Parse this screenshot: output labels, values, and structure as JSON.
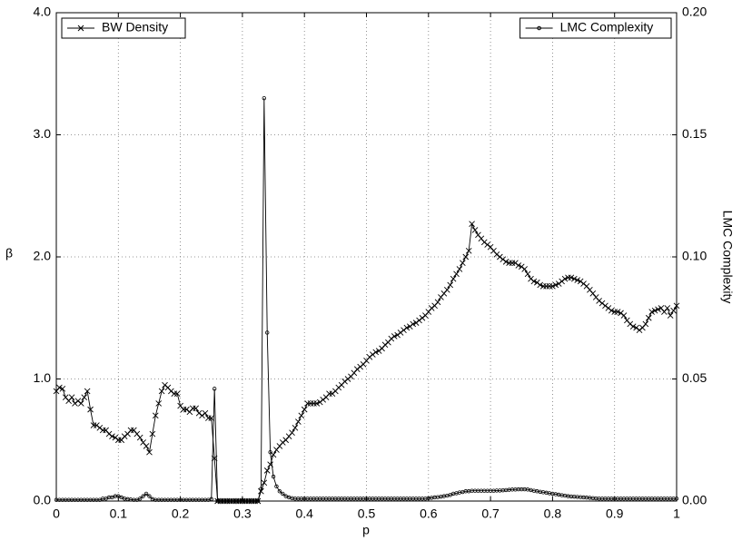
{
  "chart_data": {
    "type": "line",
    "xlabel": "p",
    "ylabel": "β",
    "y2label": "LMC Complexity",
    "xlim": [
      0,
      1
    ],
    "ylim": [
      0,
      4
    ],
    "y2lim": [
      0,
      0.2
    ],
    "xticks": [
      0,
      0.1,
      0.2,
      0.3,
      0.4,
      0.5,
      0.6,
      0.7,
      0.8,
      0.9,
      1
    ],
    "yticks": [
      {
        "value": 0,
        "label": "0.0"
      },
      {
        "value": 1,
        "label": "1.0"
      },
      {
        "value": 2,
        "label": "2.0"
      },
      {
        "value": 3,
        "label": "3.0"
      },
      {
        "value": 4,
        "label": "4.0"
      }
    ],
    "y2ticks": [
      {
        "value": 0,
        "label": "0.00"
      },
      {
        "value": 0.05,
        "label": "0.05"
      },
      {
        "value": 0.1,
        "label": "0.10"
      },
      {
        "value": 0.15,
        "label": "0.15"
      },
      {
        "value": 0.2,
        "label": "0.20"
      }
    ],
    "grid": true,
    "x": [
      0,
      0.005,
      0.01,
      0.015,
      0.02,
      0.025,
      0.03,
      0.035,
      0.04,
      0.045,
      0.05,
      0.055,
      0.06,
      0.065,
      0.07,
      0.075,
      0.08,
      0.085,
      0.09,
      0.095,
      0.1,
      0.105,
      0.11,
      0.115,
      0.12,
      0.125,
      0.13,
      0.135,
      0.14,
      0.145,
      0.15,
      0.155,
      0.16,
      0.165,
      0.17,
      0.175,
      0.18,
      0.185,
      0.19,
      0.195,
      0.2,
      0.205,
      0.21,
      0.215,
      0.22,
      0.225,
      0.23,
      0.235,
      0.24,
      0.245,
      0.25,
      0.255,
      0.26,
      0.265,
      0.27,
      0.275,
      0.28,
      0.285,
      0.29,
      0.295,
      0.3,
      0.305,
      0.31,
      0.315,
      0.32,
      0.325,
      0.33,
      0.335,
      0.34,
      0.345,
      0.35,
      0.355,
      0.36,
      0.365,
      0.37,
      0.375,
      0.38,
      0.385,
      0.39,
      0.395,
      0.4,
      0.405,
      0.41,
      0.415,
      0.42,
      0.425,
      0.43,
      0.435,
      0.44,
      0.445,
      0.45,
      0.455,
      0.46,
      0.465,
      0.47,
      0.475,
      0.48,
      0.485,
      0.49,
      0.495,
      0.5,
      0.505,
      0.51,
      0.515,
      0.52,
      0.525,
      0.53,
      0.535,
      0.54,
      0.545,
      0.55,
      0.555,
      0.56,
      0.565,
      0.57,
      0.575,
      0.58,
      0.585,
      0.59,
      0.595,
      0.6,
      0.605,
      0.61,
      0.615,
      0.62,
      0.625,
      0.63,
      0.635,
      0.64,
      0.645,
      0.65,
      0.655,
      0.66,
      0.665,
      0.67,
      0.675,
      0.68,
      0.685,
      0.69,
      0.695,
      0.7,
      0.705,
      0.71,
      0.715,
      0.72,
      0.725,
      0.73,
      0.735,
      0.74,
      0.745,
      0.75,
      0.755,
      0.76,
      0.765,
      0.77,
      0.775,
      0.78,
      0.785,
      0.79,
      0.795,
      0.8,
      0.805,
      0.81,
      0.815,
      0.82,
      0.825,
      0.83,
      0.835,
      0.84,
      0.845,
      0.85,
      0.855,
      0.86,
      0.865,
      0.87,
      0.875,
      0.88,
      0.885,
      0.89,
      0.895,
      0.9,
      0.905,
      0.91,
      0.915,
      0.92,
      0.925,
      0.93,
      0.935,
      0.94,
      0.945,
      0.95,
      0.955,
      0.96,
      0.965,
      0.97,
      0.975,
      0.98,
      0.985,
      0.99,
      0.995,
      1
    ],
    "series": [
      {
        "name": "BW Density",
        "color": "#000000",
        "marker": "x",
        "legend": "upper left",
        "axis": "y",
        "values": [
          0.9,
          0.93,
          0.92,
          0.85,
          0.82,
          0.85,
          0.8,
          0.82,
          0.8,
          0.85,
          0.9,
          0.75,
          0.62,
          0.62,
          0.6,
          0.58,
          0.58,
          0.55,
          0.53,
          0.52,
          0.5,
          0.5,
          0.53,
          0.55,
          0.58,
          0.58,
          0.55,
          0.52,
          0.48,
          0.45,
          0.4,
          0.55,
          0.7,
          0.8,
          0.9,
          0.95,
          0.93,
          0.9,
          0.88,
          0.88,
          0.78,
          0.75,
          0.75,
          0.73,
          0.76,
          0.76,
          0.72,
          0.7,
          0.72,
          0.68,
          0.68,
          0.35,
          0,
          0,
          0,
          0,
          0,
          0,
          0,
          0,
          0,
          0,
          0,
          0,
          0,
          0,
          0.08,
          0.15,
          0.25,
          0.3,
          0.38,
          0.42,
          0.45,
          0.48,
          0.5,
          0.53,
          0.56,
          0.6,
          0.65,
          0.7,
          0.75,
          0.8,
          0.8,
          0.8,
          0.8,
          0.81,
          0.83,
          0.85,
          0.88,
          0.88,
          0.9,
          0.93,
          0.95,
          0.98,
          1,
          1.02,
          1.05,
          1.08,
          1.1,
          1.12,
          1.15,
          1.18,
          1.2,
          1.22,
          1.23,
          1.25,
          1.28,
          1.3,
          1.33,
          1.35,
          1.36,
          1.38,
          1.4,
          1.42,
          1.43,
          1.45,
          1.46,
          1.48,
          1.5,
          1.52,
          1.55,
          1.58,
          1.6,
          1.63,
          1.67,
          1.7,
          1.73,
          1.77,
          1.82,
          1.86,
          1.9,
          1.95,
          2,
          2.05,
          2.27,
          2.22,
          2.18,
          2.15,
          2.12,
          2.1,
          2.08,
          2.05,
          2.02,
          2,
          1.98,
          1.96,
          1.95,
          1.95,
          1.95,
          1.93,
          1.92,
          1.9,
          1.86,
          1.82,
          1.8,
          1.79,
          1.77,
          1.76,
          1.76,
          1.76,
          1.76,
          1.77,
          1.78,
          1.8,
          1.82,
          1.83,
          1.83,
          1.82,
          1.81,
          1.8,
          1.78,
          1.76,
          1.73,
          1.7,
          1.67,
          1.64,
          1.62,
          1.6,
          1.58,
          1.56,
          1.55,
          1.55,
          1.54,
          1.52,
          1.48,
          1.45,
          1.43,
          1.42,
          1.4,
          1.42,
          1.45,
          1.5,
          1.55,
          1.56,
          1.57,
          1.58,
          1.55,
          1.58,
          1.52,
          1.56,
          1.6
        ]
      },
      {
        "name": "LMC Complexity",
        "color": "#000000",
        "marker": "o",
        "legend": "upper right",
        "axis": "y2",
        "values": [
          0.0005,
          0.0005,
          0.0005,
          0.0005,
          0.0005,
          0.0005,
          0.0005,
          0.0005,
          0.0005,
          0.0005,
          0.0005,
          0.0005,
          0.0005,
          0.0005,
          0.0005,
          0.001,
          0.001,
          0.0015,
          0.0015,
          0.002,
          0.002,
          0.0015,
          0.001,
          0.0008,
          0.0006,
          0.0005,
          0.0005,
          0.001,
          0.002,
          0.003,
          0.002,
          0.0008,
          0.0005,
          0.0005,
          0.0005,
          0.0005,
          0.0005,
          0.0005,
          0.0005,
          0.0005,
          0.0005,
          0.0005,
          0.0005,
          0.0005,
          0.0005,
          0.0005,
          0.0005,
          0.0005,
          0.0005,
          0.0005,
          0.0008,
          0.046,
          0,
          0,
          0,
          0,
          0,
          0,
          0,
          0,
          0,
          0,
          0,
          0,
          0,
          0,
          0.005,
          0.165,
          0.069,
          0.02,
          0.01,
          0.006,
          0.004,
          0.003,
          0.002,
          0.0015,
          0.0012,
          0.001,
          0.001,
          0.001,
          0.001,
          0.001,
          0.001,
          0.001,
          0.001,
          0.001,
          0.001,
          0.001,
          0.001,
          0.001,
          0.001,
          0.001,
          0.001,
          0.001,
          0.001,
          0.001,
          0.001,
          0.001,
          0.001,
          0.001,
          0.001,
          0.001,
          0.001,
          0.001,
          0.001,
          0.001,
          0.001,
          0.001,
          0.001,
          0.001,
          0.001,
          0.001,
          0.001,
          0.001,
          0.001,
          0.001,
          0.001,
          0.001,
          0.001,
          0.001,
          0.0012,
          0.0013,
          0.0015,
          0.0016,
          0.0018,
          0.002,
          0.0022,
          0.0025,
          0.003,
          0.0032,
          0.0035,
          0.0037,
          0.004,
          0.004,
          0.0042,
          0.0042,
          0.0042,
          0.0042,
          0.0042,
          0.0042,
          0.0042,
          0.0042,
          0.0043,
          0.0043,
          0.0044,
          0.0045,
          0.0046,
          0.0047,
          0.0047,
          0.0048,
          0.0048,
          0.0048,
          0.0047,
          0.0045,
          0.0042,
          0.004,
          0.0038,
          0.0036,
          0.0034,
          0.0032,
          0.003,
          0.0028,
          0.0026,
          0.0024,
          0.0022,
          0.002,
          0.0019,
          0.0018,
          0.0017,
          0.0016,
          0.0015,
          0.0014,
          0.0013,
          0.0012,
          0.0011,
          0.001,
          0.001,
          0.001,
          0.001,
          0.001,
          0.001,
          0.001,
          0.001,
          0.001,
          0.001,
          0.001,
          0.001,
          0.001,
          0.001,
          0.001,
          0.001,
          0.001,
          0.001,
          0.001,
          0.001,
          0.001,
          0.001,
          0.001,
          0.001,
          0.001,
          0.001
        ]
      }
    ]
  }
}
